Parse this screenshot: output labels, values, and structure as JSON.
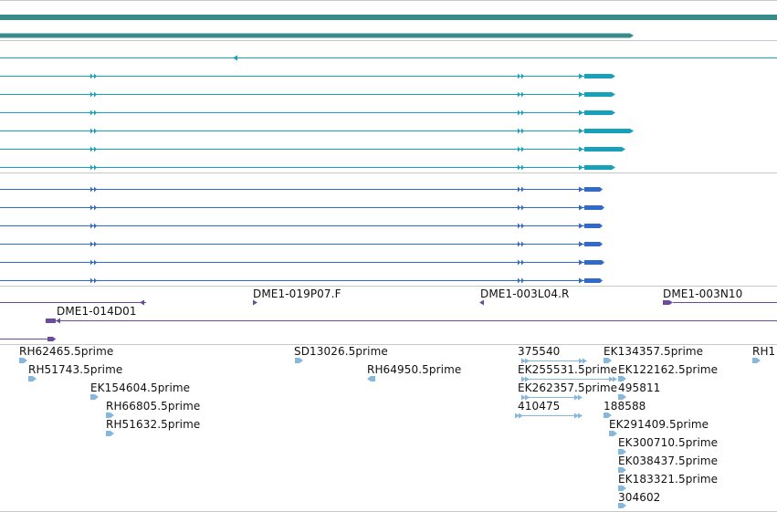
{
  "colors": {
    "teal_dark": "#3a8c8c",
    "cyan": "#17a2b8",
    "blue": "#3369c8",
    "purple": "#6b4c9a",
    "light_blue": "#86b8dc",
    "separator": "#c8c8c8"
  },
  "tracks": {
    "clone_labels": [
      "DME1-019P07.F",
      "DME1-003L04.R",
      "DME1-003N10",
      "DME1-014D01"
    ],
    "est_labels": [
      "RH62465.5prime",
      "SD13026.5prime",
      "375540",
      "EK134357.5prime",
      "RH1",
      "RH51743.5prime",
      "RH64950.5prime",
      "EK255531.5prime",
      "EK122162.5prime",
      "EK154604.5prime",
      "EK262357.5prime",
      "495811",
      "RH66805.5prime",
      "410475",
      "188588",
      "RH51632.5prime",
      "EK291409.5prime",
      "EK300710.5prime",
      "EK038437.5prime",
      "EK183321.5prime",
      "304602"
    ]
  }
}
